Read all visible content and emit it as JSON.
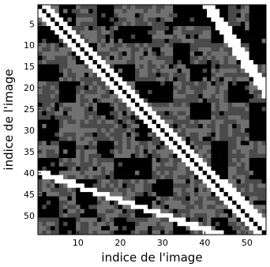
{
  "chart_data": {
    "type": "heatmap",
    "xlabel": "indice de l'image",
    "ylabel": "indice de l'image",
    "size": 54,
    "xlim": [
      0.5,
      54.5
    ],
    "ylim": [
      0.5,
      54.5
    ],
    "x_ticks": [
      10,
      20,
      30,
      40,
      50
    ],
    "y_ticks": [
      5,
      10,
      15,
      20,
      25,
      30,
      35,
      40,
      45,
      50
    ],
    "levels": {
      "black": "#000000",
      "dark_gray": "#4a4a4a",
      "gray": "#707070",
      "white": "#ffffff"
    },
    "structure": {
      "main_diagonal": "black line j = i with white band |j - i| <= 2",
      "upper_band": "white band from (column 41, row 1) to (column 54, row 20), about 3 wide",
      "lower_band": "white band from (column 1, row 40) to (column 42, row 54), about 3 wide",
      "secondary_diagonal": "black line from (42, 42) to (54, 54) with white borders",
      "region_values": "gray blocks between rows/columns 8-36, black blocks outside"
    }
  }
}
